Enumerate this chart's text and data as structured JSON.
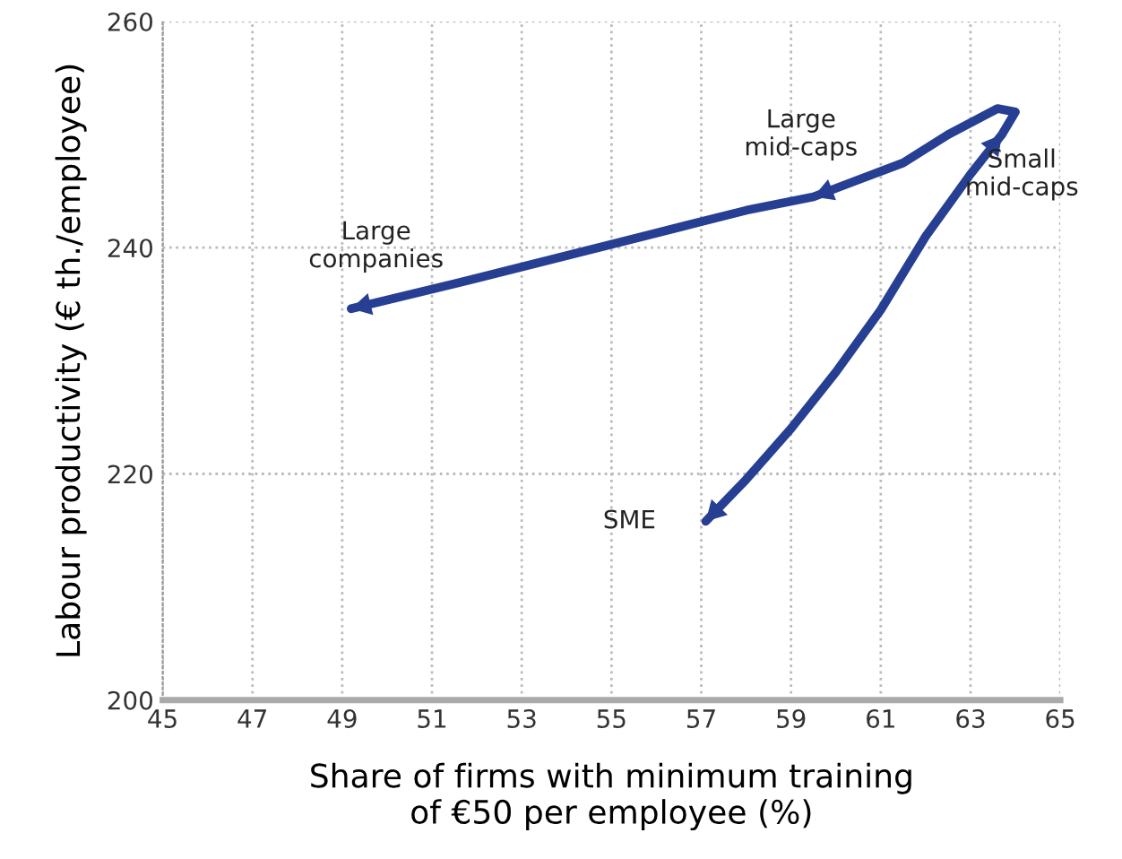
{
  "chart_data": {
    "type": "line",
    "xlabel": "Share of firms with minimum training\nof €50 per employee (%)",
    "ylabel": "Labour productivity (€ th./employee)",
    "xlim": [
      45,
      65
    ],
    "xticks": [
      45,
      47,
      49,
      51,
      53,
      55,
      57,
      59,
      61,
      63,
      65
    ],
    "ylim": [
      200,
      260
    ],
    "yticks": [
      200,
      220,
      240,
      260
    ],
    "grid": true,
    "marker": "none",
    "line_style": "solid",
    "series": [
      {
        "color": "#263f93",
        "x": [
          57.1,
          58,
          59,
          60,
          61,
          62,
          63,
          63.7,
          64,
          63.6,
          62.5,
          61.5,
          60.5,
          59.5,
          58,
          55,
          52,
          49.2
        ],
        "values": [
          215.8,
          219.5,
          224,
          229,
          234.5,
          241,
          246.5,
          250,
          252,
          252.3,
          250,
          247.5,
          246,
          244.5,
          243.3,
          240.3,
          237.3,
          234.6
        ]
      }
    ],
    "annotations": [
      {
        "text": "SME",
        "x": 57.1,
        "y": 215.8
      },
      {
        "text": "Small\nmid-caps",
        "x": 63.7,
        "y": 250
      },
      {
        "text": "Large\nmid-caps",
        "x": 59.5,
        "y": 244.5
      },
      {
        "text": "Large\ncompanies",
        "x": 49.2,
        "y": 234.6
      }
    ]
  }
}
